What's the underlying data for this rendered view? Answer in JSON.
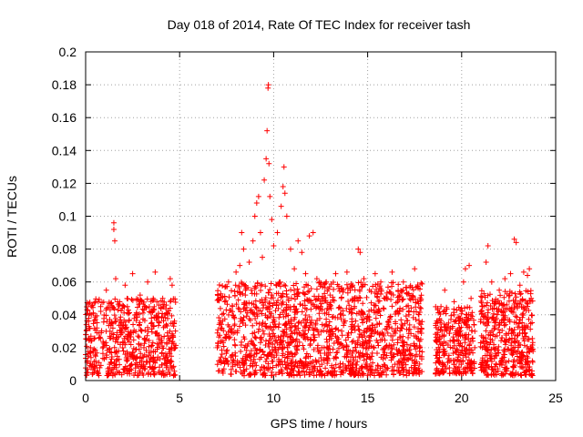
{
  "chart_data": {
    "type": "scatter",
    "title": "Day 018 of 2014, Rate Of TEC Index for receiver tash",
    "xlabel": "GPS time / hours",
    "ylabel": "ROTI / TECUs",
    "xlim": [
      0,
      25
    ],
    "ylim": [
      0,
      0.2
    ],
    "xticks": [
      0,
      5,
      10,
      15,
      20,
      25
    ],
    "xtick_labels": [
      "0",
      "5",
      "10",
      "15",
      "20",
      "25"
    ],
    "yticks": [
      0,
      0.02,
      0.04,
      0.06,
      0.08,
      0.1,
      0.12,
      0.14,
      0.16,
      0.18,
      0.2
    ],
    "ytick_labels": [
      "0",
      "0.02",
      "0.04",
      "0.06",
      "0.08",
      "0.1",
      "0.12",
      "0.14",
      "0.16",
      "0.18",
      "0.2"
    ],
    "grid": true,
    "marker": "+",
    "color": "#ff0000",
    "series": [
      {
        "name": "ROTI",
        "points": [
          [
            0.1,
            0.012
          ],
          [
            0.2,
            0.025
          ],
          [
            0.3,
            0.04
          ],
          [
            0.4,
            0.018
          ],
          [
            0.6,
            0.032
          ],
          [
            0.8,
            0.045
          ],
          [
            1.0,
            0.022
          ],
          [
            1.1,
            0.055
          ],
          [
            1.3,
            0.03
          ],
          [
            1.5,
            0.096
          ],
          [
            1.5,
            0.092
          ],
          [
            1.55,
            0.085
          ],
          [
            1.6,
            0.062
          ],
          [
            1.7,
            0.048
          ],
          [
            1.9,
            0.035
          ],
          [
            2.1,
            0.058
          ],
          [
            2.3,
            0.028
          ],
          [
            2.5,
            0.065
          ],
          [
            2.7,
            0.04
          ],
          [
            2.9,
            0.052
          ],
          [
            3.1,
            0.02
          ],
          [
            3.3,
            0.06
          ],
          [
            3.5,
            0.038
          ],
          [
            3.7,
            0.066
          ],
          [
            3.9,
            0.025
          ],
          [
            4.1,
            0.05
          ],
          [
            4.3,
            0.015
          ],
          [
            4.5,
            0.062
          ],
          [
            4.6,
            0.058
          ],
          [
            4.7,
            0.035
          ],
          [
            7.0,
            0.02
          ],
          [
            7.2,
            0.032
          ],
          [
            7.4,
            0.048
          ],
          [
            7.6,
            0.06
          ],
          [
            7.8,
            0.042
          ],
          [
            8.0,
            0.066
          ],
          [
            8.2,
            0.07
          ],
          [
            8.3,
            0.09
          ],
          [
            8.4,
            0.08
          ],
          [
            8.5,
            0.055
          ],
          [
            8.7,
            0.072
          ],
          [
            8.9,
            0.085
          ],
          [
            9.0,
            0.1
          ],
          [
            9.1,
            0.108
          ],
          [
            9.2,
            0.112
          ],
          [
            9.3,
            0.09
          ],
          [
            9.4,
            0.075
          ],
          [
            9.5,
            0.122
          ],
          [
            9.6,
            0.135
          ],
          [
            9.65,
            0.152
          ],
          [
            9.7,
            0.178
          ],
          [
            9.72,
            0.18
          ],
          [
            9.75,
            0.132
          ],
          [
            9.8,
            0.112
          ],
          [
            9.9,
            0.098
          ],
          [
            10.0,
            0.082
          ],
          [
            10.2,
            0.09
          ],
          [
            10.4,
            0.106
          ],
          [
            10.5,
            0.118
          ],
          [
            10.55,
            0.13
          ],
          [
            10.6,
            0.114
          ],
          [
            10.7,
            0.1
          ],
          [
            10.9,
            0.08
          ],
          [
            11.1,
            0.068
          ],
          [
            11.3,
            0.085
          ],
          [
            11.5,
            0.078
          ],
          [
            11.7,
            0.065
          ],
          [
            11.9,
            0.088
          ],
          [
            12.1,
            0.09
          ],
          [
            12.3,
            0.062
          ],
          [
            12.5,
            0.045
          ],
          [
            12.8,
            0.06
          ],
          [
            13.0,
            0.052
          ],
          [
            13.3,
            0.065
          ],
          [
            13.6,
            0.05
          ],
          [
            13.9,
            0.066
          ],
          [
            14.2,
            0.058
          ],
          [
            14.5,
            0.08
          ],
          [
            14.6,
            0.078
          ],
          [
            14.8,
            0.062
          ],
          [
            15.1,
            0.055
          ],
          [
            15.4,
            0.065
          ],
          [
            15.7,
            0.06
          ],
          [
            16.0,
            0.05
          ],
          [
            16.3,
            0.066
          ],
          [
            16.6,
            0.048
          ],
          [
            16.9,
            0.06
          ],
          [
            17.2,
            0.04
          ],
          [
            17.5,
            0.068
          ],
          [
            17.8,
            0.03
          ],
          [
            18.7,
            0.025
          ],
          [
            18.9,
            0.045
          ],
          [
            19.1,
            0.055
          ],
          [
            19.3,
            0.035
          ],
          [
            19.6,
            0.048
          ],
          [
            19.9,
            0.038
          ],
          [
            20.1,
            0.06
          ],
          [
            20.2,
            0.068
          ],
          [
            20.4,
            0.07
          ],
          [
            20.5,
            0.05
          ],
          [
            20.7,
            0.03
          ],
          [
            21.1,
            0.045
          ],
          [
            21.3,
            0.072
          ],
          [
            21.4,
            0.082
          ],
          [
            21.6,
            0.06
          ],
          [
            21.8,
            0.048
          ],
          [
            22.0,
            0.055
          ],
          [
            22.3,
            0.062
          ],
          [
            22.6,
            0.065
          ],
          [
            22.8,
            0.086
          ],
          [
            22.9,
            0.084
          ],
          [
            23.1,
            0.058
          ],
          [
            23.3,
            0.066
          ],
          [
            23.5,
            0.064
          ],
          [
            23.6,
            0.068
          ],
          [
            23.7,
            0.05
          ]
        ]
      }
    ],
    "dense_band": {
      "description": "densely overlapping markers",
      "segments": [
        {
          "x_start": 0.0,
          "x_end": 4.8,
          "y_min": 0.003,
          "y_max": 0.05,
          "count": 600
        },
        {
          "x_start": 7.0,
          "x_end": 17.9,
          "y_min": 0.003,
          "y_max": 0.06,
          "count": 1500
        },
        {
          "x_start": 18.6,
          "x_end": 20.7,
          "y_min": 0.004,
          "y_max": 0.045,
          "count": 300
        },
        {
          "x_start": 21.0,
          "x_end": 23.8,
          "y_min": 0.003,
          "y_max": 0.055,
          "count": 450
        }
      ]
    }
  }
}
